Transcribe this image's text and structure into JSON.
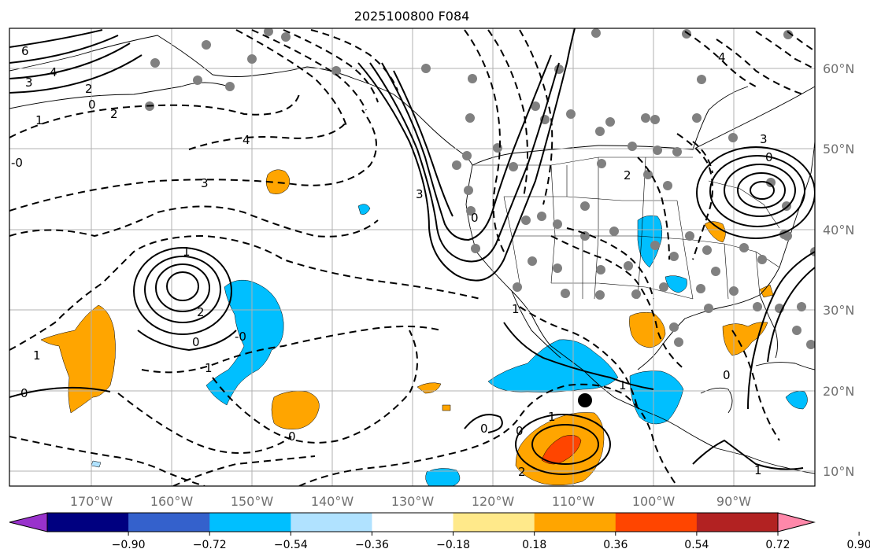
{
  "title": "2025100800 F084",
  "lat_labels": [
    "10°N",
    "20°N",
    "30°N",
    "40°N",
    "50°N",
    "60°N"
  ],
  "lon_labels": [
    "170°W",
    "160°W",
    "150°W",
    "140°W",
    "130°W",
    "120°W",
    "110°W",
    "100°W",
    "90°W"
  ],
  "colorbar": {
    "ticks": [
      "−0.90",
      "−0.72",
      "−0.54",
      "−0.36",
      "−0.18",
      "0.18",
      "0.36",
      "0.54",
      "0.72",
      "0.90"
    ],
    "colors": [
      "#9932cc",
      "#000080",
      "#3461cc",
      "#00bfff",
      "#b0e2ff",
      "#ffffff",
      "#ffe98a",
      "#ffa500",
      "#ff4500",
      "#b22222",
      "#ff88aa"
    ]
  },
  "contour_labels": [
    "6",
    "4",
    "3",
    "2",
    "0",
    "1",
    "2",
    "-0",
    "4",
    "3",
    "1",
    "2",
    "0",
    "1",
    "-0",
    "0",
    "1",
    "0",
    "3",
    "2",
    "0",
    "1",
    "0",
    "1",
    "2",
    "0",
    "4",
    "3",
    "0",
    "1",
    "0",
    "1"
  ],
  "marker_label": ""
}
